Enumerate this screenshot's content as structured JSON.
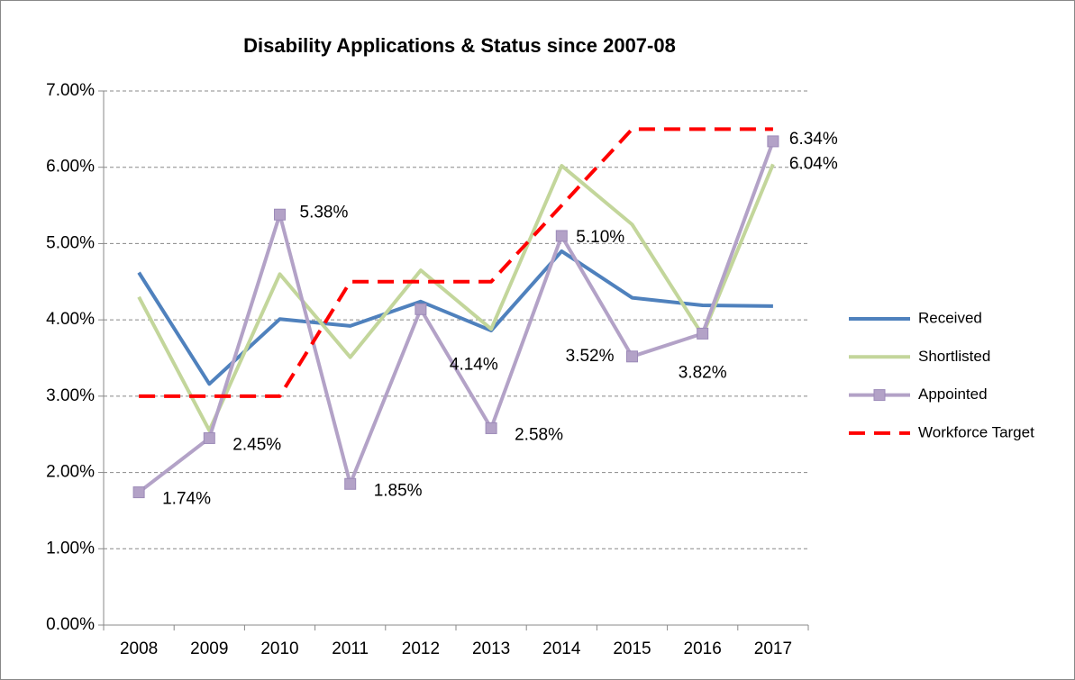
{
  "chart_data": {
    "type": "line",
    "title": "Disability Applications & Status since 2007-08",
    "categories": [
      "2008",
      "2009",
      "2010",
      "2011",
      "2012",
      "2013",
      "2014",
      "2015",
      "2016",
      "2017"
    ],
    "series": [
      {
        "name": "Received",
        "color": "#4f81bd",
        "values": [
          4.62,
          3.16,
          4.01,
          3.92,
          4.24,
          3.86,
          4.9,
          4.29,
          4.19,
          4.18
        ]
      },
      {
        "name": "Shortlisted",
        "color": "#c3d69b",
        "values": [
          4.3,
          2.55,
          4.6,
          3.51,
          4.65,
          3.88,
          6.02,
          5.25,
          3.8,
          6.04
        ],
        "value_labels": [
          null,
          null,
          null,
          null,
          null,
          null,
          null,
          null,
          null,
          "6.04%"
        ]
      },
      {
        "name": "Appointed",
        "color": "#b3a2c7",
        "marker": "square",
        "values": [
          1.74,
          2.45,
          5.38,
          1.85,
          4.14,
          2.58,
          5.1,
          3.52,
          3.82,
          6.34
        ],
        "value_labels": [
          "1.74%",
          "2.45%",
          "5.38%",
          "1.85%",
          "4.14%",
          "2.58%",
          "5.10%",
          "3.52%",
          "3.82%",
          "6.34%"
        ]
      },
      {
        "name": "Workforce Target",
        "color": "#ff0000",
        "dashed": true,
        "values": [
          3,
          3,
          3,
          4.5,
          4.5,
          4.5,
          5.5,
          6.5,
          6.5,
          6.5
        ]
      }
    ],
    "ylim": [
      0,
      7
    ],
    "yticks": [
      {
        "value": 0,
        "label": "0.00%"
      },
      {
        "value": 1,
        "label": "1.00%"
      },
      {
        "value": 2,
        "label": "2.00%"
      },
      {
        "value": 3,
        "label": "3.00%"
      },
      {
        "value": 4,
        "label": "4.00%"
      },
      {
        "value": 5,
        "label": "5.00%"
      },
      {
        "value": 6,
        "label": "6.00%"
      },
      {
        "value": 7,
        "label": "7.00%"
      }
    ],
    "grid": true,
    "legend": "right"
  }
}
